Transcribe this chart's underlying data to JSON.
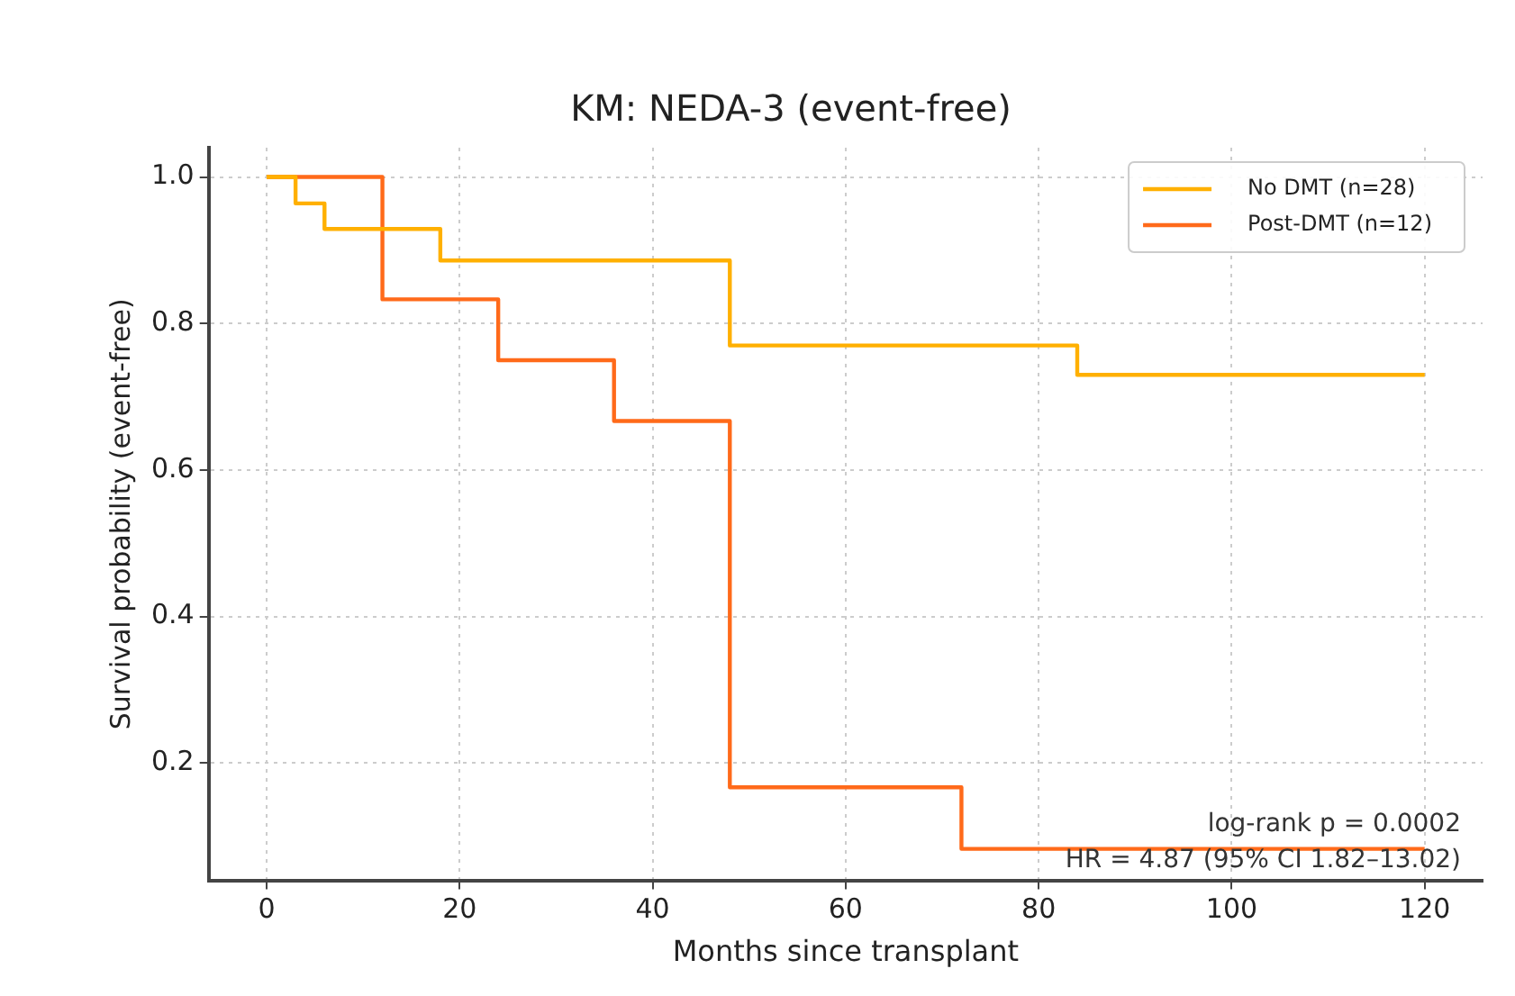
{
  "chart_data": {
    "type": "step",
    "title": "KM: NEDA-3 (event-free)",
    "xlabel": "Months since transplant",
    "ylabel": "Survival probability (event-free)",
    "xlim": [
      -6,
      126
    ],
    "xticks": [
      0,
      20,
      40,
      60,
      80,
      100,
      120
    ],
    "ylim": [
      0.04,
      1.04
    ],
    "yticks": [
      {
        "value": 0.2,
        "label": "0.2"
      },
      {
        "value": 0.4,
        "label": "0.4"
      },
      {
        "value": 0.6,
        "label": "0.6"
      },
      {
        "value": 0.8,
        "label": "0.8"
      },
      {
        "value": 1.0,
        "label": "1.0"
      }
    ],
    "grid": true,
    "legend": "top right",
    "line_style": "solid",
    "marker": "none",
    "annotations": [
      "log-rank p = 0.0002",
      "HR = 4.87 (95% CI 1.82–13.02)"
    ],
    "series": [
      {
        "name": "No DMT (n=28)",
        "color": "#ffb000",
        "x": [
          0,
          3,
          6,
          18,
          48,
          84,
          120
        ],
        "values": [
          1.0,
          0.964,
          0.929,
          0.886,
          0.77,
          0.73,
          0.73
        ]
      },
      {
        "name": "Post-DMT (n=12)",
        "color": "#ff6a1a",
        "x": [
          0,
          12,
          24,
          36,
          48,
          72,
          120
        ],
        "values": [
          1.0,
          0.833,
          0.75,
          0.667,
          0.167,
          0.083,
          0.083
        ]
      }
    ]
  }
}
